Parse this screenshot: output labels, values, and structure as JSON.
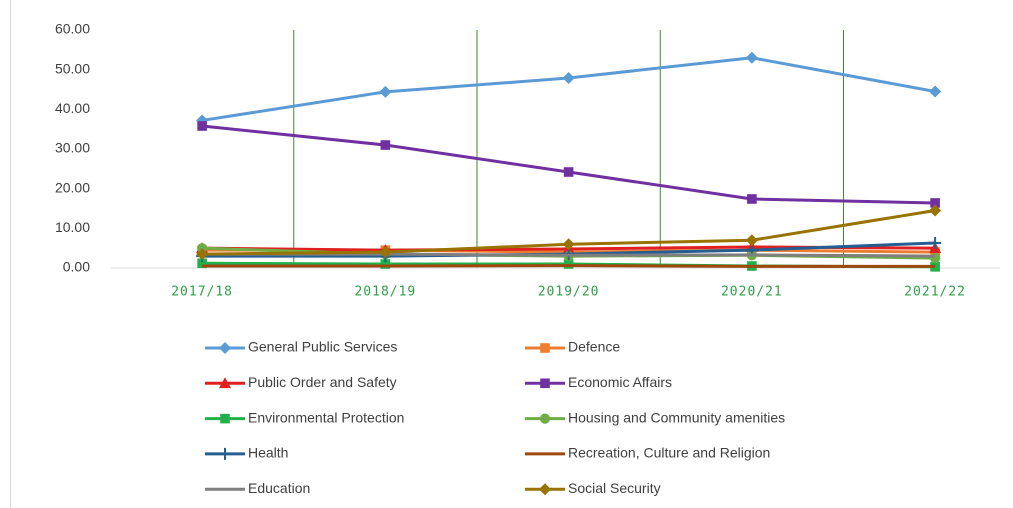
{
  "chart_data": {
    "type": "line",
    "categories": [
      "2017/18",
      "2018/19",
      "2019/20",
      "2020/21",
      "2021/22"
    ],
    "ylim": [
      0,
      60
    ],
    "yticks": [
      {
        "value": 0,
        "label": "0.00"
      },
      {
        "value": 10,
        "label": "10.00"
      },
      {
        "value": 20,
        "label": "20.00"
      },
      {
        "value": 30,
        "label": "30.00"
      },
      {
        "value": 40,
        "label": "40.00"
      },
      {
        "value": 50,
        "label": "50.00"
      },
      {
        "value": 60,
        "label": "60.00"
      }
    ],
    "grid": false,
    "legend": "bottom",
    "series": [
      {
        "name": "General Public Services",
        "color": "#5b9bd5",
        "marker": "diamond",
        "values": [
          37.2,
          44.4,
          47.9,
          53.0,
          44.5
        ]
      },
      {
        "name": "Defence",
        "color": "#ed7d31",
        "marker": "square",
        "values": [
          4.5,
          4.5,
          4.0,
          4.5,
          4.0
        ]
      },
      {
        "name": "Public Order and Safety",
        "color": "#e02020",
        "marker": "triangle",
        "values": [
          5.0,
          4.5,
          4.8,
          5.3,
          5.0
        ]
      },
      {
        "name": "Economic Affairs",
        "color": "#7030a0",
        "marker": "square",
        "values": [
          35.8,
          31.0,
          24.2,
          17.4,
          16.4
        ]
      },
      {
        "name": "Environmental Protection",
        "color": "#22b04a",
        "marker": "square",
        "values": [
          1.2,
          1.0,
          1.0,
          0.5,
          0.3
        ]
      },
      {
        "name": "Housing and Community amenities",
        "color": "#70ad47",
        "marker": "circle",
        "values": [
          5.0,
          3.5,
          3.0,
          3.2,
          2.5
        ]
      },
      {
        "name": "Health",
        "color": "#255e91",
        "marker": "plus",
        "values": [
          3.0,
          3.0,
          3.5,
          4.5,
          6.3
        ]
      },
      {
        "name": "Recreation, Culture and Religion",
        "color": "#9e480e",
        "marker": "none",
        "values": [
          0.5,
          0.5,
          0.6,
          0.4,
          0.4
        ]
      },
      {
        "name": "Education",
        "color": "#7f7f7f",
        "marker": "none",
        "values": [
          3.5,
          3.5,
          3.2,
          3.3,
          3.0
        ]
      },
      {
        "name": "Social Security",
        "color": "#997300",
        "marker": "diamond",
        "values": [
          3.5,
          4.0,
          6.0,
          7.0,
          14.5
        ]
      }
    ]
  }
}
